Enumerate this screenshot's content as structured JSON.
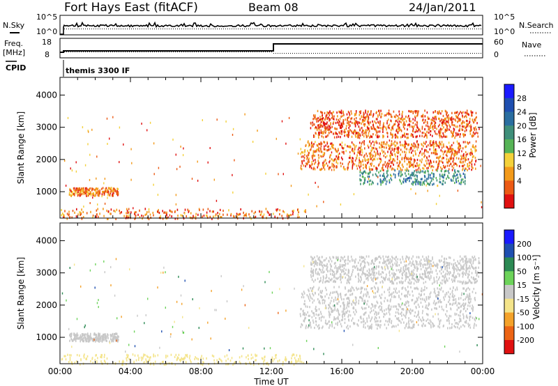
{
  "header": {
    "title": "Fort Hays East (fitACF)",
    "beam": "Beam 08",
    "date": "24/Jan/2011",
    "cpid": "themis 3300 IF"
  },
  "status_panels": {
    "nsky_label": "N.Sky",
    "nsky_ticks": [
      "10^5",
      "10^0"
    ],
    "nsearch_label": "N.Search",
    "nsearch_ticks": [
      "10^5",
      "10^0"
    ],
    "freq_label": "Freq.",
    "freq_unit": "[MHz]",
    "freq_ticks": [
      "18",
      "8"
    ],
    "nave_label": "Nave",
    "nave_ticks": [
      "60",
      "0"
    ],
    "cpid_label": "CPID"
  },
  "colors": {
    "power_scale": [
      "#1a1aff",
      "#1f4fb0",
      "#2a6ea0",
      "#3f8f7a",
      "#56b356",
      "#f4d13a",
      "#f39a1a",
      "#ec5a14",
      "#e01010"
    ],
    "velocity_scale": [
      "#1a1aff",
      "#1f4fb0",
      "#2c8a54",
      "#6dd35a",
      "#c8c8c8",
      "#f4e48a",
      "#f4a22a",
      "#ec6414",
      "#e01010"
    ]
  },
  "chart_data": [
    {
      "type": "heatmap",
      "name": "power",
      "ylabel": "Slant Range [km]",
      "ylim": [
        180,
        4550
      ],
      "yticks": [
        1000,
        2000,
        3000,
        4000
      ],
      "xlim": [
        0,
        24
      ],
      "colorbar": {
        "label": "Power [dB]",
        "ticks": [
          "28",
          "24",
          "20",
          "16",
          "12",
          "8",
          "4"
        ],
        "range": [
          0,
          30
        ]
      },
      "regions": [
        {
          "t_start": 0.5,
          "t_end": 3.3,
          "r_low": 900,
          "r_high": 1150,
          "value": 7
        },
        {
          "t_start": 0.0,
          "t_end": 14.0,
          "r_low": 180,
          "r_high": 500,
          "value": 6
        },
        {
          "t_start": 13.6,
          "t_end": 23.6,
          "r_low": 1700,
          "r_high": 2600,
          "value": 6
        },
        {
          "t_start": 17.0,
          "t_end": 23.0,
          "r_low": 1250,
          "r_high": 1700,
          "value": 19
        },
        {
          "t_start": 14.2,
          "t_end": 23.8,
          "r_low": 2700,
          "r_high": 3550,
          "value": 5
        }
      ]
    },
    {
      "type": "heatmap",
      "name": "velocity",
      "xlabel": "Time UT",
      "ylabel": "Slant Range [km]",
      "ylim": [
        180,
        4550
      ],
      "yticks": [
        1000,
        2000,
        3000,
        4000
      ],
      "xlim": [
        0,
        24
      ],
      "xticks": [
        "00:00",
        "04:00",
        "08:00",
        "12:00",
        "16:00",
        "20:00",
        "00:00"
      ],
      "colorbar": {
        "label": "Velocity [m s⁻¹]",
        "ticks": [
          "200",
          "100",
          "50",
          "15",
          "-15",
          "-50",
          "-100",
          "-200"
        ],
        "range": [
          -250,
          250
        ]
      },
      "regions": [
        {
          "t_start": 0.5,
          "t_end": 3.3,
          "r_low": 900,
          "r_high": 1150,
          "value": -5
        },
        {
          "t_start": 0.0,
          "t_end": 14.0,
          "r_low": 180,
          "r_high": 500,
          "value": -60
        },
        {
          "t_start": 13.6,
          "t_end": 23.6,
          "r_low": 1300,
          "r_high": 2600,
          "value": 0
        },
        {
          "t_start": 14.2,
          "t_end": 23.8,
          "r_low": 2700,
          "r_high": 3550,
          "value": 5
        }
      ]
    }
  ]
}
